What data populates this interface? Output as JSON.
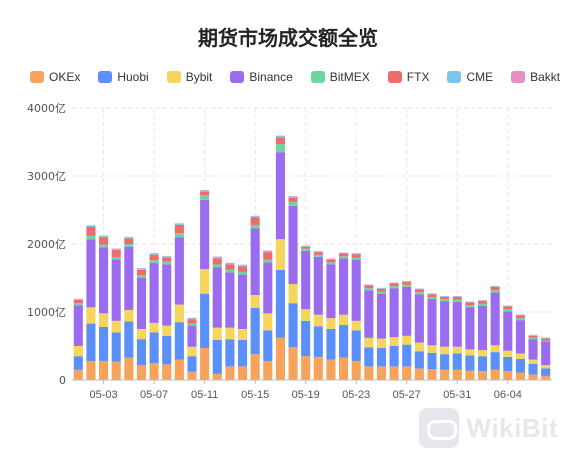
{
  "chart_data": {
    "type": "bar",
    "stacked": true,
    "title": "期货市场成交额全览",
    "unit": "亿",
    "ylim": [
      0,
      4000
    ],
    "yticks": [
      "0",
      "1000亿",
      "2000亿",
      "3000亿",
      "4000亿"
    ],
    "ytick_values": [
      0,
      1000,
      2000,
      3000,
      4000
    ],
    "grid": true,
    "legend_position": "top",
    "categories": [
      "05-01",
      "05-02",
      "05-03",
      "05-04",
      "05-05",
      "05-06",
      "05-07",
      "05-08",
      "05-09",
      "05-10",
      "05-11",
      "05-12",
      "05-13",
      "05-14",
      "05-15",
      "05-16",
      "05-17",
      "05-18",
      "05-19",
      "05-20",
      "05-21",
      "05-22",
      "05-23",
      "05-24",
      "05-25",
      "05-26",
      "05-27",
      "05-28",
      "05-29",
      "05-30",
      "05-31",
      "06-01",
      "06-02",
      "06-03",
      "06-04",
      "06-05",
      "06-06",
      "06-07"
    ],
    "xtick_labels": [
      "05-03",
      "05-07",
      "05-11",
      "05-15",
      "05-19",
      "05-23",
      "05-27",
      "05-31",
      "06-04"
    ],
    "series": [
      {
        "name": "OKEx",
        "color": "#f7a35c",
        "values": [
          150,
          280,
          280,
          270,
          330,
          220,
          250,
          230,
          300,
          120,
          470,
          90,
          200,
          200,
          380,
          280,
          620,
          480,
          350,
          340,
          300,
          330,
          280,
          200,
          200,
          200,
          200,
          170,
          160,
          150,
          150,
          140,
          130,
          150,
          130,
          110,
          80,
          60
        ]
      },
      {
        "name": "Huobi",
        "color": "#5b8ff9",
        "values": [
          200,
          550,
          500,
          430,
          530,
          380,
          450,
          420,
          550,
          230,
          800,
          500,
          400,
          390,
          680,
          450,
          1000,
          650,
          520,
          450,
          450,
          480,
          450,
          280,
          270,
          300,
          320,
          250,
          240,
          230,
          240,
          220,
          220,
          260,
          210,
          200,
          160,
          110
        ]
      },
      {
        "name": "Bybit",
        "color": "#f6d55c",
        "values": [
          150,
          240,
          200,
          170,
          170,
          150,
          140,
          150,
          260,
          140,
          360,
          180,
          170,
          160,
          190,
          250,
          450,
          280,
          170,
          170,
          160,
          150,
          140,
          140,
          140,
          130,
          130,
          130,
          110,
          110,
          100,
          90,
          90,
          100,
          90,
          80,
          60,
          50
        ]
      },
      {
        "name": "Binance",
        "color": "#9b6cf0",
        "values": [
          600,
          1000,
          970,
          900,
          930,
          750,
          880,
          900,
          990,
          310,
          1020,
          890,
          810,
          800,
          980,
          750,
          1280,
          1150,
          860,
          850,
          790,
          830,
          900,
          700,
          660,
          720,
          720,
          710,
          680,
          670,
          660,
          620,
          650,
          780,
          580,
          490,
          300,
          350
        ]
      },
      {
        "name": "BitMEX",
        "color": "#6dd6a0",
        "values": [
          30,
          50,
          40,
          40,
          40,
          40,
          40,
          40,
          60,
          30,
          70,
          40,
          40,
          40,
          50,
          40,
          120,
          60,
          30,
          30,
          30,
          30,
          30,
          30,
          30,
          30,
          30,
          30,
          30,
          30,
          30,
          30,
          30,
          30,
          30,
          30,
          20,
          10
        ]
      },
      {
        "name": "FTX",
        "color": "#ef6b6b",
        "values": [
          50,
          130,
          110,
          100,
          80,
          80,
          80,
          60,
          120,
          60,
          50,
          90,
          80,
          80,
          110,
          110,
          100,
          60,
          30,
          40,
          40,
          40,
          50,
          40,
          40,
          40,
          40,
          40,
          40,
          30,
          40,
          40,
          40,
          50,
          40,
          40,
          30,
          30
        ]
      },
      {
        "name": "CME",
        "color": "#79c6ec",
        "values": [
          10,
          20,
          20,
          20,
          20,
          20,
          20,
          20,
          20,
          20,
          20,
          20,
          20,
          20,
          20,
          20,
          20,
          20,
          10,
          10,
          10,
          10,
          10,
          10,
          10,
          10,
          10,
          10,
          10,
          10,
          10,
          10,
          10,
          10,
          10,
          10,
          10,
          10
        ]
      },
      {
        "name": "Bakkt",
        "color": "#e68ec5",
        "values": [
          5,
          5,
          5,
          5,
          5,
          5,
          5,
          5,
          5,
          5,
          5,
          5,
          5,
          5,
          5,
          5,
          5,
          5,
          5,
          5,
          5,
          5,
          5,
          5,
          5,
          5,
          5,
          5,
          5,
          5,
          5,
          5,
          5,
          5,
          5,
          5,
          5,
          5
        ]
      }
    ]
  },
  "watermark": {
    "text": "WikiBit"
  }
}
